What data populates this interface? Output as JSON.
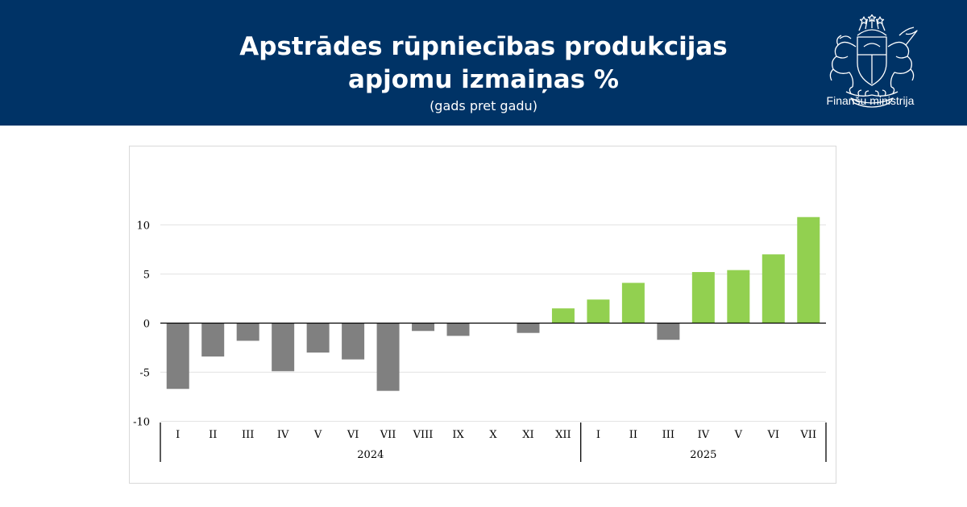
{
  "header": {
    "title_line1": "Apstrādes rūpniecības produkcijas",
    "title_line2": "apjomu izmaiņas %",
    "subtitle": "(gads pret gadu)",
    "logo_text": "Finanšu ministrija",
    "background_color": "#003366"
  },
  "chart_data": {
    "type": "bar",
    "title": "Apstrādes rūpniecības produkcijas apjomu izmaiņas %",
    "subtitle": "(gads pret gadu)",
    "categories": [
      "I",
      "II",
      "III",
      "IV",
      "V",
      "VI",
      "VII",
      "VIII",
      "IX",
      "X",
      "XI",
      "XII",
      "I",
      "II",
      "III",
      "IV",
      "V",
      "VI",
      "VII"
    ],
    "groups": [
      {
        "label": "2024",
        "count": 12
      },
      {
        "label": "2025",
        "count": 7
      }
    ],
    "values": [
      -6.7,
      -3.4,
      -1.8,
      -4.9,
      -3.0,
      -3.7,
      -6.9,
      -0.8,
      -1.3,
      0.0,
      -1.0,
      1.5,
      2.4,
      4.1,
      -1.7,
      5.2,
      5.4,
      7.0,
      10.8
    ],
    "colors": {
      "negative": "#808080",
      "positive": "#92d050"
    },
    "ylim": [
      -10,
      15
    ],
    "yticks": [
      -10,
      -5,
      0,
      5,
      10
    ],
    "grid": true,
    "legend": "none"
  }
}
